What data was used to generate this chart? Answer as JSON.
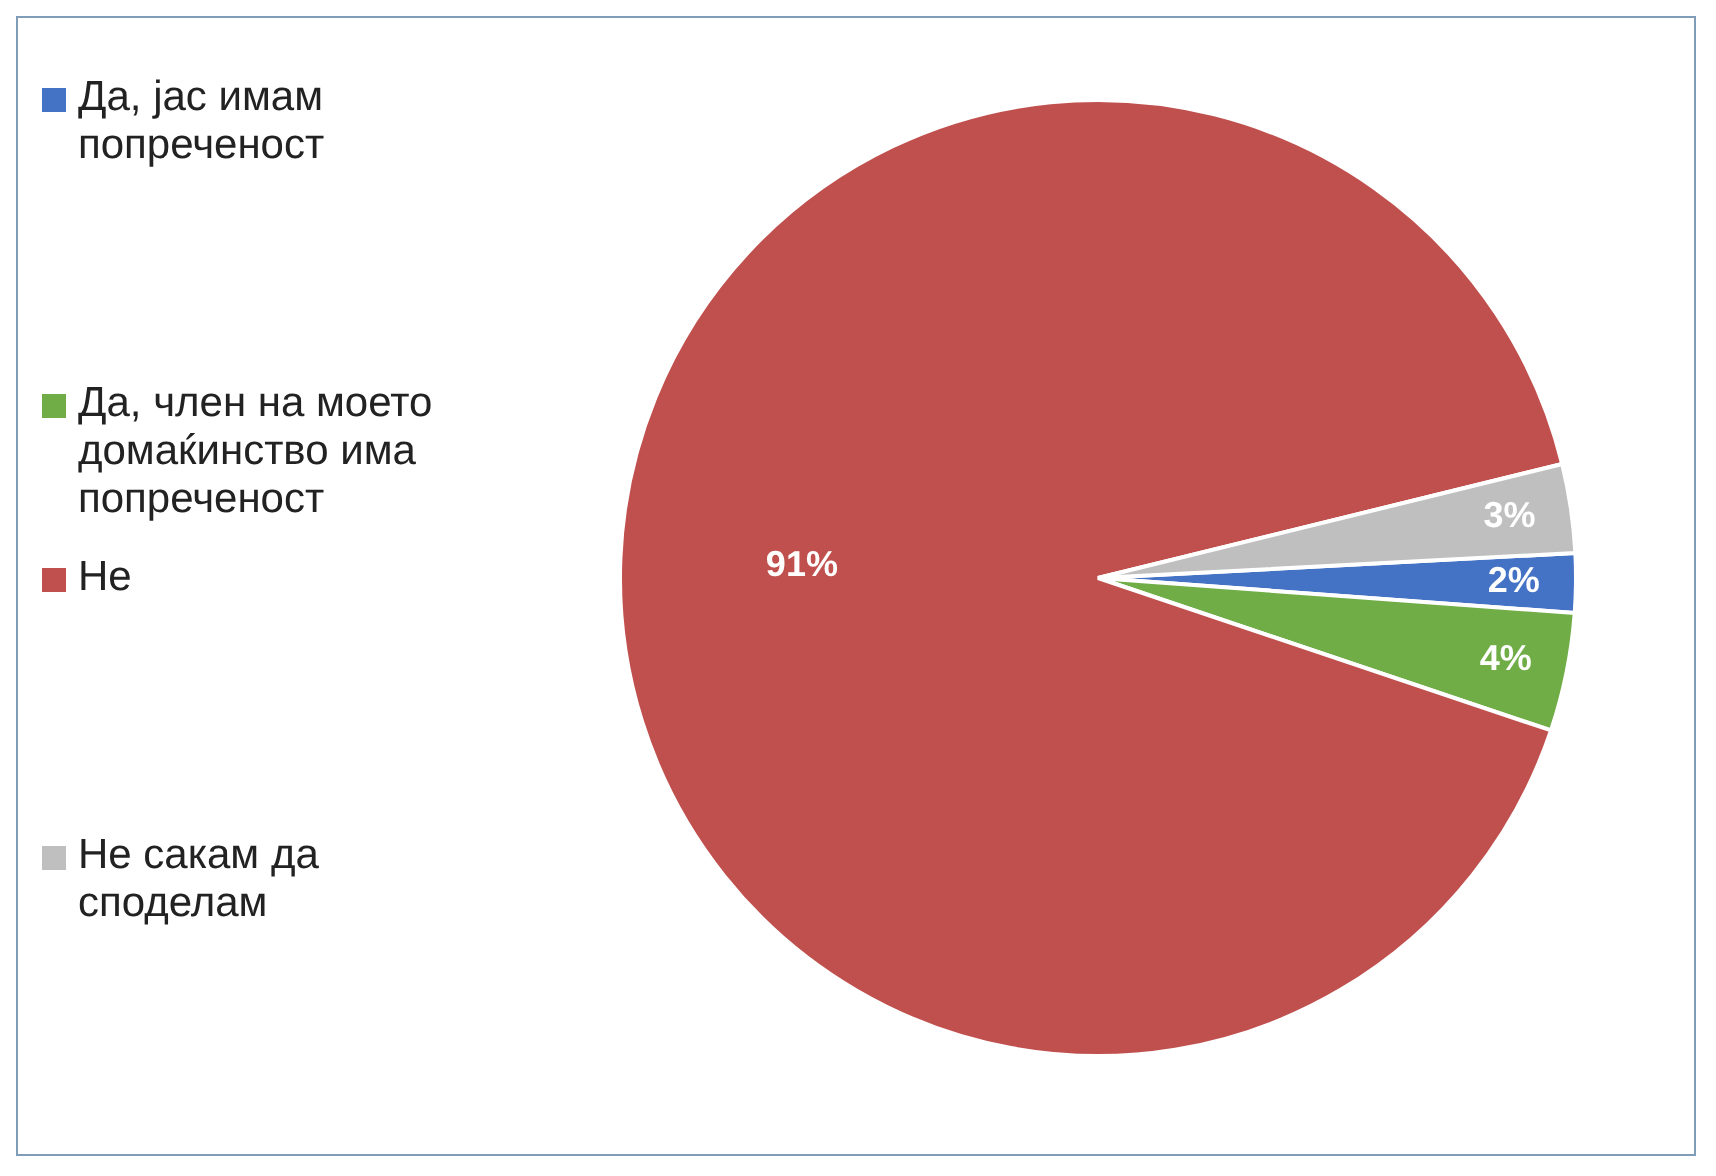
{
  "chart_data": {
    "type": "pie",
    "categories": [
      "Да, јас имам попреченост",
      "Да, член на моето домаќинство има попреченост",
      "Не",
      "Не сакам да споделам"
    ],
    "values": [
      2,
      4,
      91,
      3
    ],
    "colors": [
      "#4472c4",
      "#70ad47",
      "#c0504d",
      "#bfbfbf"
    ],
    "value_labels": [
      "2%",
      "4%",
      "91%",
      "3%"
    ],
    "legend": "left"
  }
}
